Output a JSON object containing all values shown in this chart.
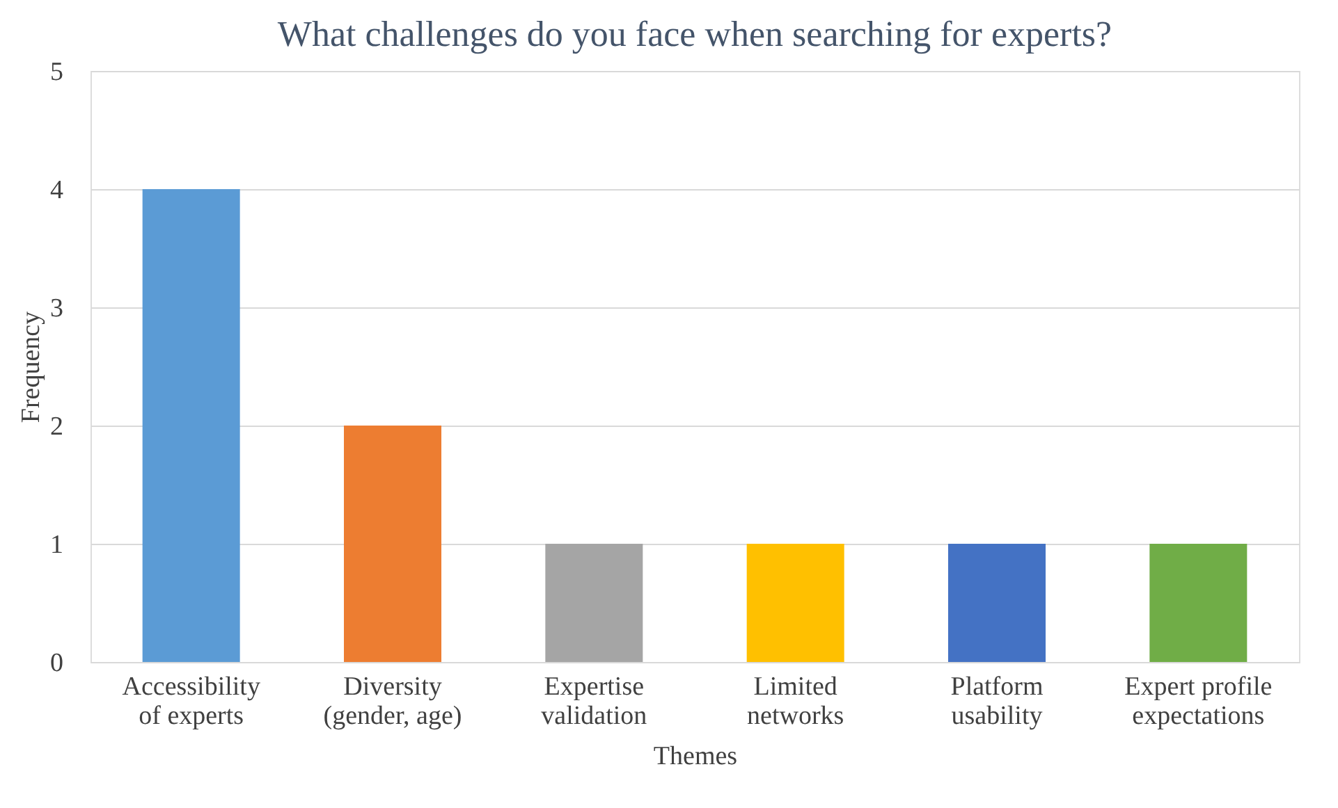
{
  "chart_data": {
    "type": "bar",
    "title": "What challenges do you face when searching for experts?",
    "xlabel": "Themes",
    "ylabel": "Frequency",
    "categories": [
      "Accessibility of experts",
      "Diversity (gender, age)",
      "Expertise validation",
      "Limited networks",
      "Platform usability",
      "Expert profile expectations"
    ],
    "values": [
      4,
      2,
      1,
      1,
      1,
      1
    ],
    "colors": [
      "#5b9bd5",
      "#ed7d31",
      "#a5a5a5",
      "#ffc000",
      "#4472c4",
      "#70ad47"
    ],
    "ylim": [
      0,
      5
    ],
    "yticks": [
      0,
      1,
      2,
      3,
      4,
      5
    ],
    "grid": "y"
  }
}
